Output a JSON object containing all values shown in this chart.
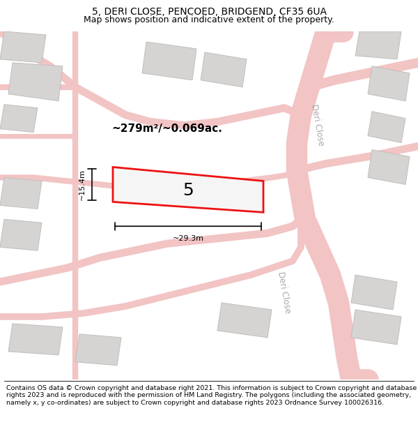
{
  "title": "5, DERI CLOSE, PENCOED, BRIDGEND, CF35 6UA",
  "subtitle": "Map shows position and indicative extent of the property.",
  "footer": "Contains OS data © Crown copyright and database right 2021. This information is subject to Crown copyright and database rights 2023 and is reproduced with the permission of HM Land Registry. The polygons (including the associated geometry, namely x, y co-ordinates) are subject to Crown copyright and database rights 2023 Ordnance Survey 100026316.",
  "bg_color": "#edecea",
  "road_color": "#f2c4c4",
  "building_color": "#d6d4d2",
  "building_edge_color": "#c0bebb",
  "highlight_color": "#ee1111",
  "highlight_fill": "#f5f5f5",
  "area_text": "~279m²/~0.069ac.",
  "plot_number": "5",
  "dim_width": "~29.3m",
  "dim_height": "~15.4m",
  "road_label_color": "#aaaaaa",
  "road_label_1": "Deri Close",
  "road_label_2": "Deri Close",
  "title_fontsize": 10,
  "subtitle_fontsize": 9,
  "footer_fontsize": 6.8
}
